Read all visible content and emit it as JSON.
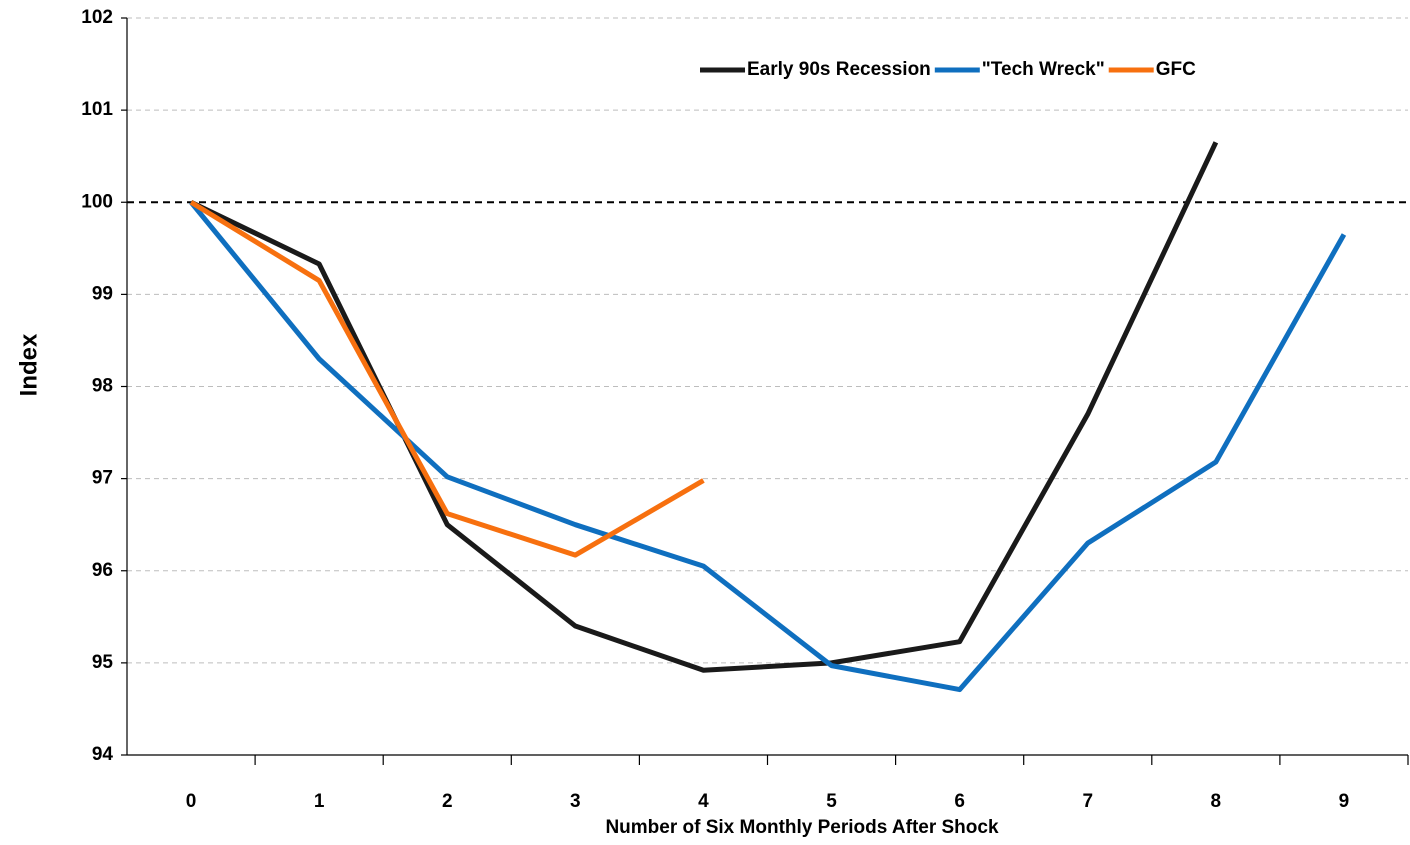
{
  "chart_data": {
    "type": "line",
    "x_label": "Number of Six Monthly Periods After Shock",
    "y_label": "Index",
    "categories": [
      "0",
      "1",
      "2",
      "3",
      "4",
      "5",
      "6",
      "7",
      "8",
      "9"
    ],
    "series": [
      {
        "name": "Early 90s Recession",
        "color": "#1a1a1a",
        "values": [
          100,
          99.33,
          96.5,
          95.4,
          94.92,
          95.0,
          95.23,
          97.7,
          100.65,
          null
        ]
      },
      {
        "name": "\"Tech Wreck\"",
        "color": "#0f6fbf",
        "values": [
          100,
          98.3,
          97.02,
          96.5,
          96.05,
          94.97,
          94.71,
          96.3,
          97.18,
          99.65
        ]
      },
      {
        "name": "GFC",
        "color": "#f7700f",
        "values": [
          100,
          99.15,
          96.62,
          96.17,
          96.98,
          null,
          null,
          null,
          null,
          null
        ]
      }
    ],
    "ylim": [
      94,
      102
    ],
    "yticks": [
      94,
      95,
      96,
      97,
      98,
      99,
      100,
      101,
      102
    ],
    "reference_line": 100,
    "grid": true,
    "legend": "upper right"
  }
}
